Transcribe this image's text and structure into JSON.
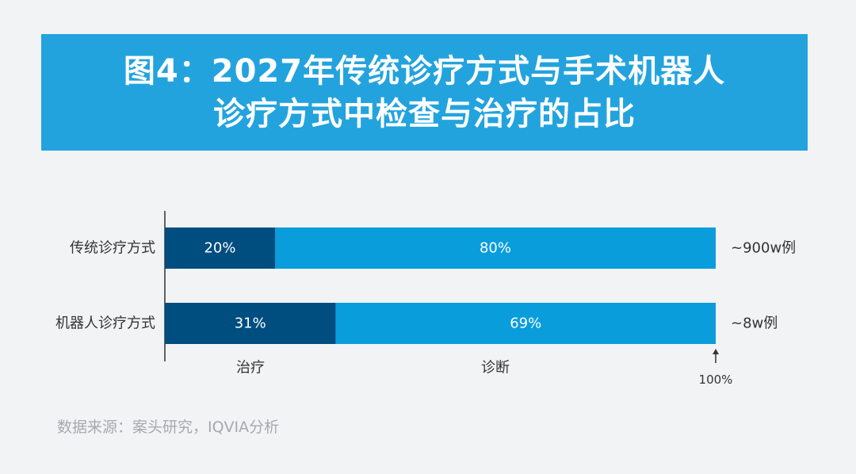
{
  "header": {
    "title_line1": "图4：2027年传统诊疗方式与手术机器人",
    "title_line2": "诊疗方式中检查与治疗的占比"
  },
  "chart_data": {
    "type": "bar",
    "stacked": true,
    "orientation": "horizontal",
    "categories": [
      "传统诊疗方式",
      "机器人诊疗方式"
    ],
    "series": [
      {
        "name": "治疗",
        "values": [
          20,
          31
        ],
        "labels": [
          "20%",
          "31%"
        ],
        "color": "#004d80"
      },
      {
        "name": "诊断",
        "values": [
          80,
          69
        ],
        "labels": [
          "80%",
          "69%"
        ],
        "color": "#0a9ddc"
      }
    ],
    "totals": [
      "~900w例",
      "~8w例"
    ],
    "xlim": [
      0,
      100
    ],
    "end_marker_label": "100%",
    "legend_placement": "bottom"
  },
  "footer": {
    "source": "数据来源：案头研究，IQVIA分析"
  },
  "colors": {
    "background": "#f2f3f5",
    "banner": "#23a3de",
    "treatment": "#004d80",
    "diagnosis": "#0a9ddc",
    "axis": "#333333",
    "text": "#333333",
    "source_text": "#a7a9ad"
  }
}
